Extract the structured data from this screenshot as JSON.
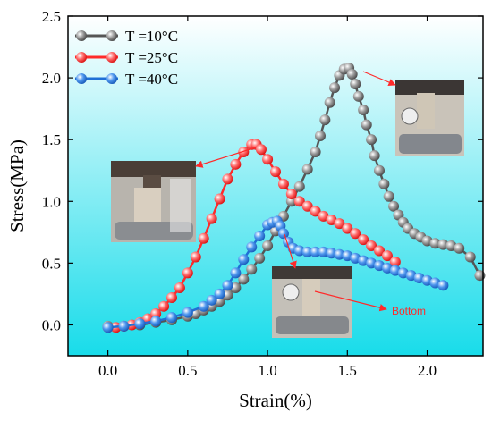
{
  "chart_data": {
    "type": "line",
    "xlabel": "Strain(%)",
    "ylabel": "Stress(MPa)",
    "xlim": [
      -0.25,
      2.35
    ],
    "ylim": [
      -0.25,
      2.5
    ],
    "xticks": [
      "0.0",
      "0.5",
      "1.0",
      "1.5",
      "2.0"
    ],
    "yticks": [
      "0.0",
      "0.5",
      "1.0",
      "1.5",
      "2.0",
      "2.5"
    ],
    "xtick_values": [
      0,
      0.5,
      1.0,
      1.5,
      2.0
    ],
    "ytick_values": [
      0,
      0.5,
      1.0,
      1.5,
      2.0,
      2.5
    ],
    "legend_position": "top-left",
    "series": [
      {
        "name": "T =10°C",
        "color": "#555555",
        "x": [
          0.0,
          0.1,
          0.2,
          0.3,
          0.4,
          0.5,
          0.55,
          0.6,
          0.65,
          0.7,
          0.75,
          0.8,
          0.85,
          0.9,
          0.95,
          1.0,
          1.05,
          1.1,
          1.15,
          1.2,
          1.25,
          1.3,
          1.33,
          1.36,
          1.39,
          1.42,
          1.45,
          1.48,
          1.51,
          1.53,
          1.55,
          1.57,
          1.6,
          1.62,
          1.65,
          1.67,
          1.7,
          1.73,
          1.76,
          1.79,
          1.82,
          1.85,
          1.88,
          1.92,
          1.96,
          2.0,
          2.05,
          2.1,
          2.15,
          2.2,
          2.27,
          2.33
        ],
        "y": [
          -0.01,
          -0.01,
          0.0,
          0.02,
          0.04,
          0.07,
          0.09,
          0.12,
          0.15,
          0.19,
          0.24,
          0.3,
          0.37,
          0.45,
          0.54,
          0.64,
          0.76,
          0.88,
          1.0,
          1.12,
          1.26,
          1.4,
          1.53,
          1.66,
          1.8,
          1.92,
          2.02,
          2.07,
          2.08,
          2.03,
          1.95,
          1.85,
          1.74,
          1.62,
          1.5,
          1.37,
          1.25,
          1.14,
          1.04,
          0.96,
          0.89,
          0.83,
          0.78,
          0.74,
          0.71,
          0.68,
          0.66,
          0.65,
          0.64,
          0.62,
          0.55,
          0.4
        ]
      },
      {
        "name": "T =25°C",
        "color": "#ff2a2a",
        "x": [
          0.0,
          0.05,
          0.1,
          0.15,
          0.2,
          0.25,
          0.3,
          0.35,
          0.4,
          0.45,
          0.5,
          0.55,
          0.6,
          0.65,
          0.7,
          0.75,
          0.8,
          0.85,
          0.9,
          0.93,
          0.96,
          1.0,
          1.05,
          1.1,
          1.15,
          1.2,
          1.25,
          1.3,
          1.35,
          1.4,
          1.45,
          1.5,
          1.55,
          1.6,
          1.65,
          1.7,
          1.75,
          1.8
        ],
        "y": [
          -0.02,
          -0.02,
          -0.01,
          0.0,
          0.02,
          0.05,
          0.09,
          0.15,
          0.22,
          0.3,
          0.42,
          0.55,
          0.7,
          0.86,
          1.02,
          1.18,
          1.3,
          1.4,
          1.46,
          1.46,
          1.42,
          1.34,
          1.24,
          1.14,
          1.06,
          1.0,
          0.96,
          0.92,
          0.88,
          0.85,
          0.82,
          0.78,
          0.74,
          0.69,
          0.64,
          0.6,
          0.56,
          0.51
        ]
      },
      {
        "name": "T =40°C",
        "color": "#1f6fd6",
        "x": [
          0.0,
          0.1,
          0.2,
          0.3,
          0.4,
          0.5,
          0.6,
          0.65,
          0.7,
          0.75,
          0.8,
          0.85,
          0.9,
          0.95,
          1.0,
          1.03,
          1.06,
          1.08,
          1.1,
          1.13,
          1.16,
          1.2,
          1.25,
          1.3,
          1.35,
          1.4,
          1.45,
          1.5,
          1.55,
          1.6,
          1.65,
          1.7,
          1.75,
          1.8,
          1.85,
          1.9,
          1.95,
          2.0,
          2.05,
          2.1
        ],
        "y": [
          -0.02,
          -0.01,
          0.01,
          0.03,
          0.06,
          0.1,
          0.15,
          0.2,
          0.25,
          0.32,
          0.42,
          0.53,
          0.63,
          0.72,
          0.81,
          0.83,
          0.84,
          0.8,
          0.74,
          0.67,
          0.62,
          0.6,
          0.59,
          0.59,
          0.59,
          0.58,
          0.57,
          0.56,
          0.54,
          0.52,
          0.5,
          0.48,
          0.46,
          0.44,
          0.42,
          0.4,
          0.38,
          0.36,
          0.34,
          0.32
        ]
      }
    ]
  },
  "annotations": {
    "bottom_label": "Bottom"
  }
}
